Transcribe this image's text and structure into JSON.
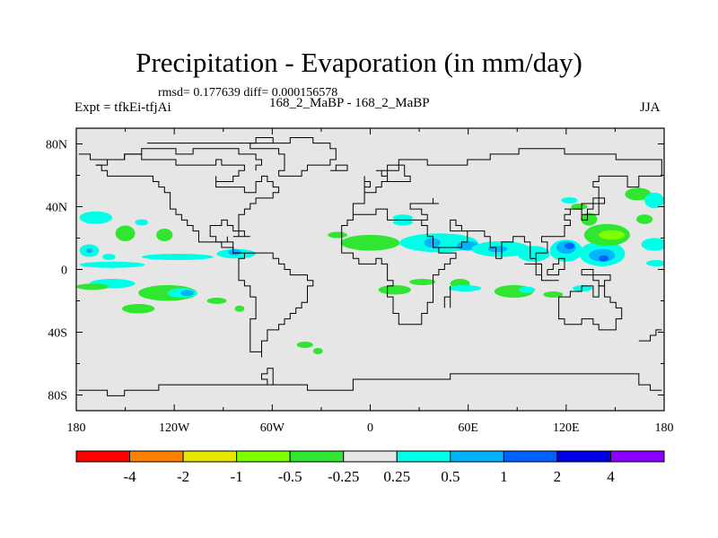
{
  "title": "Precipitation - Evaporation (in mm/day)",
  "stats": "rmsd= 0.177639 diff= 0.000156578",
  "left_label": "Expt = tfkEi-tfjAi",
  "center_label": "168_2_MaBP - 168_2_MaBP",
  "right_label": "JJA",
  "colors": {
    "background_field": "#e6e6e6",
    "land_outline": "#000000",
    "bins": [
      "#ff0000",
      "#ff8000",
      "#e6e600",
      "#80ff00",
      "#30e630",
      "#e6e6e6",
      "#00ffe6",
      "#00b4ff",
      "#0060ff",
      "#0000e6",
      "#8c00ff"
    ]
  },
  "chart_data": {
    "type": "heatmap",
    "title": "Precipitation - Evaporation (in mm/day)",
    "xlabel": "",
    "ylabel": "",
    "xlim": [
      -180,
      180
    ],
    "ylim": [
      -90,
      90
    ],
    "x_ticks": [
      {
        "value": -180,
        "label": "180"
      },
      {
        "value": -120,
        "label": "120W"
      },
      {
        "value": -60,
        "label": "60W"
      },
      {
        "value": 0,
        "label": "0"
      },
      {
        "value": 60,
        "label": "60E"
      },
      {
        "value": 120,
        "label": "120E"
      },
      {
        "value": 180,
        "label": "180"
      }
    ],
    "y_ticks": [
      {
        "value": 80,
        "label": "80N"
      },
      {
        "value": 40,
        "label": "40N"
      },
      {
        "value": 0,
        "label": "0"
      },
      {
        "value": -40,
        "label": "40S"
      },
      {
        "value": -80,
        "label": "80S"
      }
    ],
    "colorbar": {
      "levels": [
        "-4",
        "-2",
        "-1",
        "-0.5",
        "-0.25",
        "0.25",
        "0.5",
        "1",
        "2",
        "4"
      ]
    },
    "anomalies": [
      {
        "lon": -168,
        "lat": 33,
        "rlon": 10,
        "rlat": 4,
        "bin": 6
      },
      {
        "lon": -140,
        "lat": 30,
        "rlon": 4,
        "rlat": 2,
        "bin": 6
      },
      {
        "lon": -150,
        "lat": 23,
        "rlon": 6,
        "rlat": 5,
        "bin": 4
      },
      {
        "lon": -126,
        "lat": 22,
        "rlon": 5,
        "rlat": 4,
        "bin": 4
      },
      {
        "lon": -172,
        "lat": 12,
        "rlon": 6,
        "rlat": 4,
        "bin": 6
      },
      {
        "lon": -172,
        "lat": 12,
        "rlon": 2,
        "rlat": 1.5,
        "bin": 7
      },
      {
        "lon": -160,
        "lat": 8,
        "rlon": 4,
        "rlat": 2,
        "bin": 6
      },
      {
        "lon": -158,
        "lat": 3,
        "rlon": 20,
        "rlat": 2,
        "bin": 6
      },
      {
        "lon": -118,
        "lat": 8,
        "rlon": 22,
        "rlat": 2,
        "bin": 6
      },
      {
        "lon": -82,
        "lat": 10,
        "rlon": 12,
        "rlat": 3,
        "bin": 6
      },
      {
        "lon": -83,
        "lat": 11,
        "rlon": 4,
        "rlat": 2,
        "bin": 7
      },
      {
        "lon": -158,
        "lat": -9,
        "rlon": 14,
        "rlat": 3,
        "bin": 6
      },
      {
        "lon": -170,
        "lat": -11,
        "rlon": 10,
        "rlat": 2,
        "bin": 4
      },
      {
        "lon": -124,
        "lat": -15,
        "rlon": 18,
        "rlat": 5,
        "bin": 4
      },
      {
        "lon": -115,
        "lat": -15,
        "rlon": 9,
        "rlat": 3,
        "bin": 6
      },
      {
        "lon": -112,
        "lat": -15,
        "rlon": 4,
        "rlat": 2,
        "bin": 7
      },
      {
        "lon": -142,
        "lat": -25,
        "rlon": 10,
        "rlat": 3,
        "bin": 4
      },
      {
        "lon": -94,
        "lat": -20,
        "rlon": 6,
        "rlat": 2,
        "bin": 4
      },
      {
        "lon": -80,
        "lat": -25,
        "rlon": 3,
        "rlat": 2,
        "bin": 4
      },
      {
        "lon": -40,
        "lat": -48,
        "rlon": 5,
        "rlat": 2,
        "bin": 4
      },
      {
        "lon": -32,
        "lat": -52,
        "rlon": 3,
        "rlat": 2,
        "bin": 4
      },
      {
        "lon": -20,
        "lat": 22,
        "rlon": 6,
        "rlat": 2,
        "bin": 4
      },
      {
        "lon": 0,
        "lat": 17,
        "rlon": 18,
        "rlat": 5,
        "bin": 4
      },
      {
        "lon": 20,
        "lat": 30,
        "rlon": 6,
        "rlat": 2,
        "bin": 6
      },
      {
        "lon": 42,
        "lat": 17,
        "rlon": 24,
        "rlat": 6,
        "bin": 6
      },
      {
        "lon": 38,
        "lat": 17,
        "rlon": 5,
        "rlat": 3,
        "bin": 7
      },
      {
        "lon": 60,
        "lat": 15,
        "rlon": 7,
        "rlat": 3,
        "bin": 7
      },
      {
        "lon": 80,
        "lat": 13,
        "rlon": 18,
        "rlat": 5,
        "bin": 6
      },
      {
        "lon": 78,
        "lat": 13,
        "rlon": 6,
        "rlat": 2,
        "bin": 7
      },
      {
        "lon": 100,
        "lat": 10,
        "rlon": 10,
        "rlat": 5,
        "bin": 6
      },
      {
        "lon": 120,
        "lat": 12,
        "rlon": 10,
        "rlat": 7,
        "bin": 6
      },
      {
        "lon": 120,
        "lat": 14,
        "rlon": 6,
        "rlat": 4,
        "bin": 7
      },
      {
        "lon": 122,
        "lat": 15,
        "rlon": 3,
        "rlat": 2,
        "bin": 8
      },
      {
        "lon": 142,
        "lat": 10,
        "rlon": 14,
        "rlat": 8,
        "bin": 6
      },
      {
        "lon": 142,
        "lat": 9,
        "rlon": 8,
        "rlat": 4,
        "bin": 7
      },
      {
        "lon": 143,
        "lat": 7,
        "rlon": 3,
        "rlat": 2,
        "bin": 8
      },
      {
        "lon": 145,
        "lat": 22,
        "rlon": 14,
        "rlat": 7,
        "bin": 4
      },
      {
        "lon": 148,
        "lat": 22,
        "rlon": 8,
        "rlat": 3,
        "bin": 3
      },
      {
        "lon": 134,
        "lat": 32,
        "rlon": 5,
        "rlat": 4,
        "bin": 4
      },
      {
        "lon": 174,
        "lat": 16,
        "rlon": 8,
        "rlat": 4,
        "bin": 6
      },
      {
        "lon": 175,
        "lat": 4,
        "rlon": 6,
        "rlat": 2,
        "bin": 6
      },
      {
        "lon": 164,
        "lat": 48,
        "rlon": 8,
        "rlat": 4,
        "bin": 4
      },
      {
        "lon": 174,
        "lat": 44,
        "rlon": 6,
        "rlat": 5,
        "bin": 6
      },
      {
        "lon": 168,
        "lat": 32,
        "rlon": 5,
        "rlat": 3,
        "bin": 4
      },
      {
        "lon": 122,
        "lat": 44,
        "rlon": 5,
        "rlat": 2,
        "bin": 6
      },
      {
        "lon": 128,
        "lat": 40,
        "rlon": 5,
        "rlat": 2,
        "bin": 4
      },
      {
        "lon": 15,
        "lat": -13,
        "rlon": 10,
        "rlat": 3,
        "bin": 4
      },
      {
        "lon": 32,
        "lat": -8,
        "rlon": 8,
        "rlat": 2,
        "bin": 4
      },
      {
        "lon": 55,
        "lat": -9,
        "rlon": 6,
        "rlat": 3,
        "bin": 4
      },
      {
        "lon": 58,
        "lat": -12,
        "rlon": 10,
        "rlat": 2,
        "bin": 6
      },
      {
        "lon": 88,
        "lat": -14,
        "rlon": 12,
        "rlat": 4,
        "bin": 4
      },
      {
        "lon": 96,
        "lat": -13,
        "rlon": 5,
        "rlat": 2,
        "bin": 6
      },
      {
        "lon": 112,
        "lat": -16,
        "rlon": 6,
        "rlat": 2,
        "bin": 4
      },
      {
        "lon": 130,
        "lat": -12,
        "rlon": 6,
        "rlat": 2,
        "bin": 6
      },
      {
        "lon": 20,
        "lat": 33,
        "rlon": 6,
        "rlat": 2,
        "bin": 6
      }
    ]
  }
}
